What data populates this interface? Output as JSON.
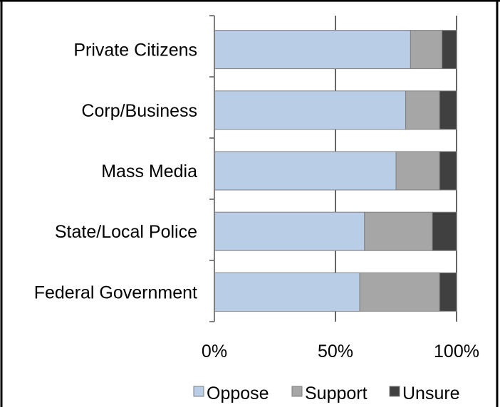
{
  "chart_data": {
    "type": "bar",
    "orientation": "horizontal",
    "stacked": "percent",
    "categories": [
      "Private Citizens",
      "Corp/Business",
      "Mass Media",
      "State/Local Police",
      "Federal Government"
    ],
    "series": [
      {
        "name": "Oppose",
        "values": [
          81,
          79,
          75,
          62,
          60
        ],
        "color": "#b9cde6"
      },
      {
        "name": "Support",
        "values": [
          13,
          14,
          18,
          28,
          33
        ],
        "color": "#a6a6a6"
      },
      {
        "name": "Unsure",
        "values": [
          6,
          7,
          7,
          10,
          7
        ],
        "color": "#404040"
      }
    ],
    "x_ticks": [
      "0%",
      "50%",
      "100%"
    ],
    "xlim": [
      0,
      100
    ],
    "grid": "vertical",
    "legend": "bottom"
  }
}
